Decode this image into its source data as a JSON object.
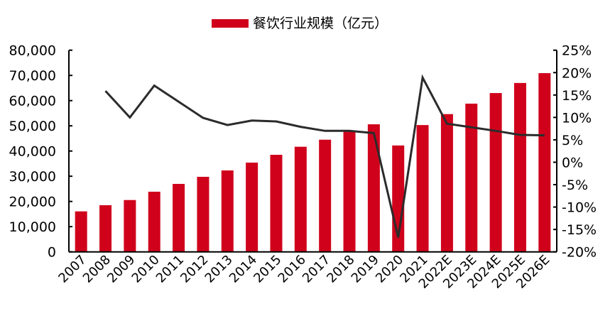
{
  "chart_data": {
    "type": "bar+line",
    "title": "",
    "legend": {
      "placement": "top",
      "entries": [
        "餐饮行业规模（亿元）"
      ]
    },
    "categories": [
      "2007",
      "2008",
      "2009",
      "2010",
      "2011",
      "2012",
      "2013",
      "2014",
      "2015",
      "2016",
      "2017",
      "2018",
      "2019",
      "2020",
      "2021",
      "2022E",
      "2023E",
      "2024E",
      "2025E",
      "2026E"
    ],
    "series": [
      {
        "name": "餐饮行业规模（亿元）",
        "type": "bar",
        "axis": "left",
        "color": "#d0021b",
        "values": [
          16060,
          18500,
          20560,
          23860,
          26960,
          29770,
          32300,
          35400,
          38500,
          41700,
          44500,
          48100,
          50600,
          42200,
          50300,
          54650,
          58800,
          63000,
          67000,
          70900
        ]
      },
      {
        "type": "line",
        "axis": "right",
        "color": "#2b2b2b",
        "values": [
          null,
          15.9,
          10.0,
          17.1,
          13.5,
          9.9,
          8.3,
          9.3,
          9.1,
          7.9,
          7.0,
          7.0,
          6.5,
          -16.8,
          18.9,
          8.6,
          7.8,
          7.0,
          6.1,
          6.0
        ]
      }
    ],
    "y_left": {
      "range": [
        0,
        80000
      ],
      "ticks": [
        0,
        10000,
        20000,
        30000,
        40000,
        50000,
        60000,
        70000,
        80000
      ],
      "tick_labels": [
        "0",
        "10,000",
        "20,000",
        "30,000",
        "40,000",
        "50,000",
        "60,000",
        "70,000",
        "80,000"
      ]
    },
    "y_right": {
      "range": [
        -20,
        25
      ],
      "ticks": [
        -20,
        -15,
        -10,
        -5,
        0,
        5,
        10,
        15,
        20,
        25
      ],
      "tick_labels": [
        "-20%",
        "-15%",
        "-10%",
        "-5%",
        "0%",
        "5%",
        "10%",
        "15%",
        "20%",
        "25%"
      ]
    },
    "grid": false
  }
}
